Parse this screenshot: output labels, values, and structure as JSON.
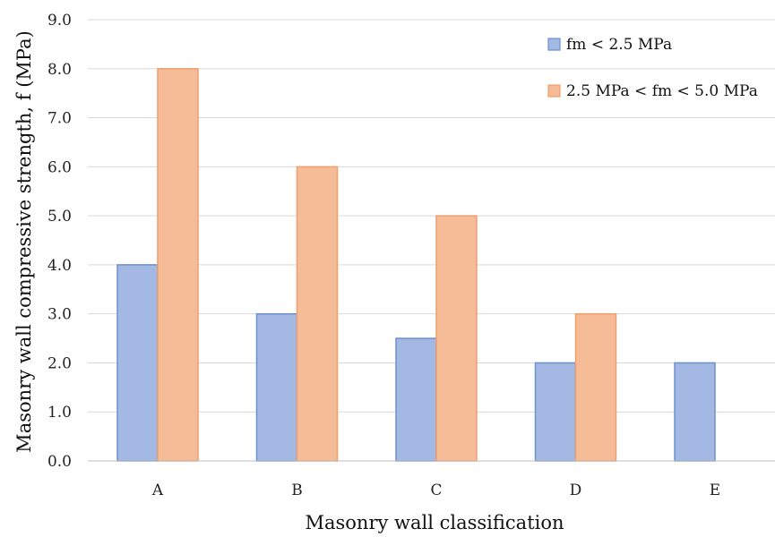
{
  "chart_data": {
    "type": "bar",
    "title": "",
    "xlabel": "Masonry wall classification",
    "ylabel": "Masonry wall compressive strength, f (MPa)",
    "ylim": [
      0,
      9
    ],
    "yticks": [
      "0.0",
      "1.0",
      "2.0",
      "3.0",
      "4.0",
      "5.0",
      "6.0",
      "7.0",
      "8.0",
      "9.0"
    ],
    "categories": [
      "A",
      "B",
      "C",
      "D",
      "E"
    ],
    "grid": true,
    "legend_position": "top-right",
    "series": [
      {
        "name": "fm < 2.5 MPa",
        "values": [
          4.0,
          3.0,
          2.5,
          2.0,
          2.0
        ],
        "fill": "#a3b8e2",
        "stroke": "#6f8fcf"
      },
      {
        "name": "2.5 MPa < fm < 5.0 MPa",
        "values": [
          8.0,
          6.0,
          5.0,
          3.0,
          null
        ],
        "fill": "#f6bc98",
        "stroke": "#ee9f6e"
      }
    ]
  }
}
